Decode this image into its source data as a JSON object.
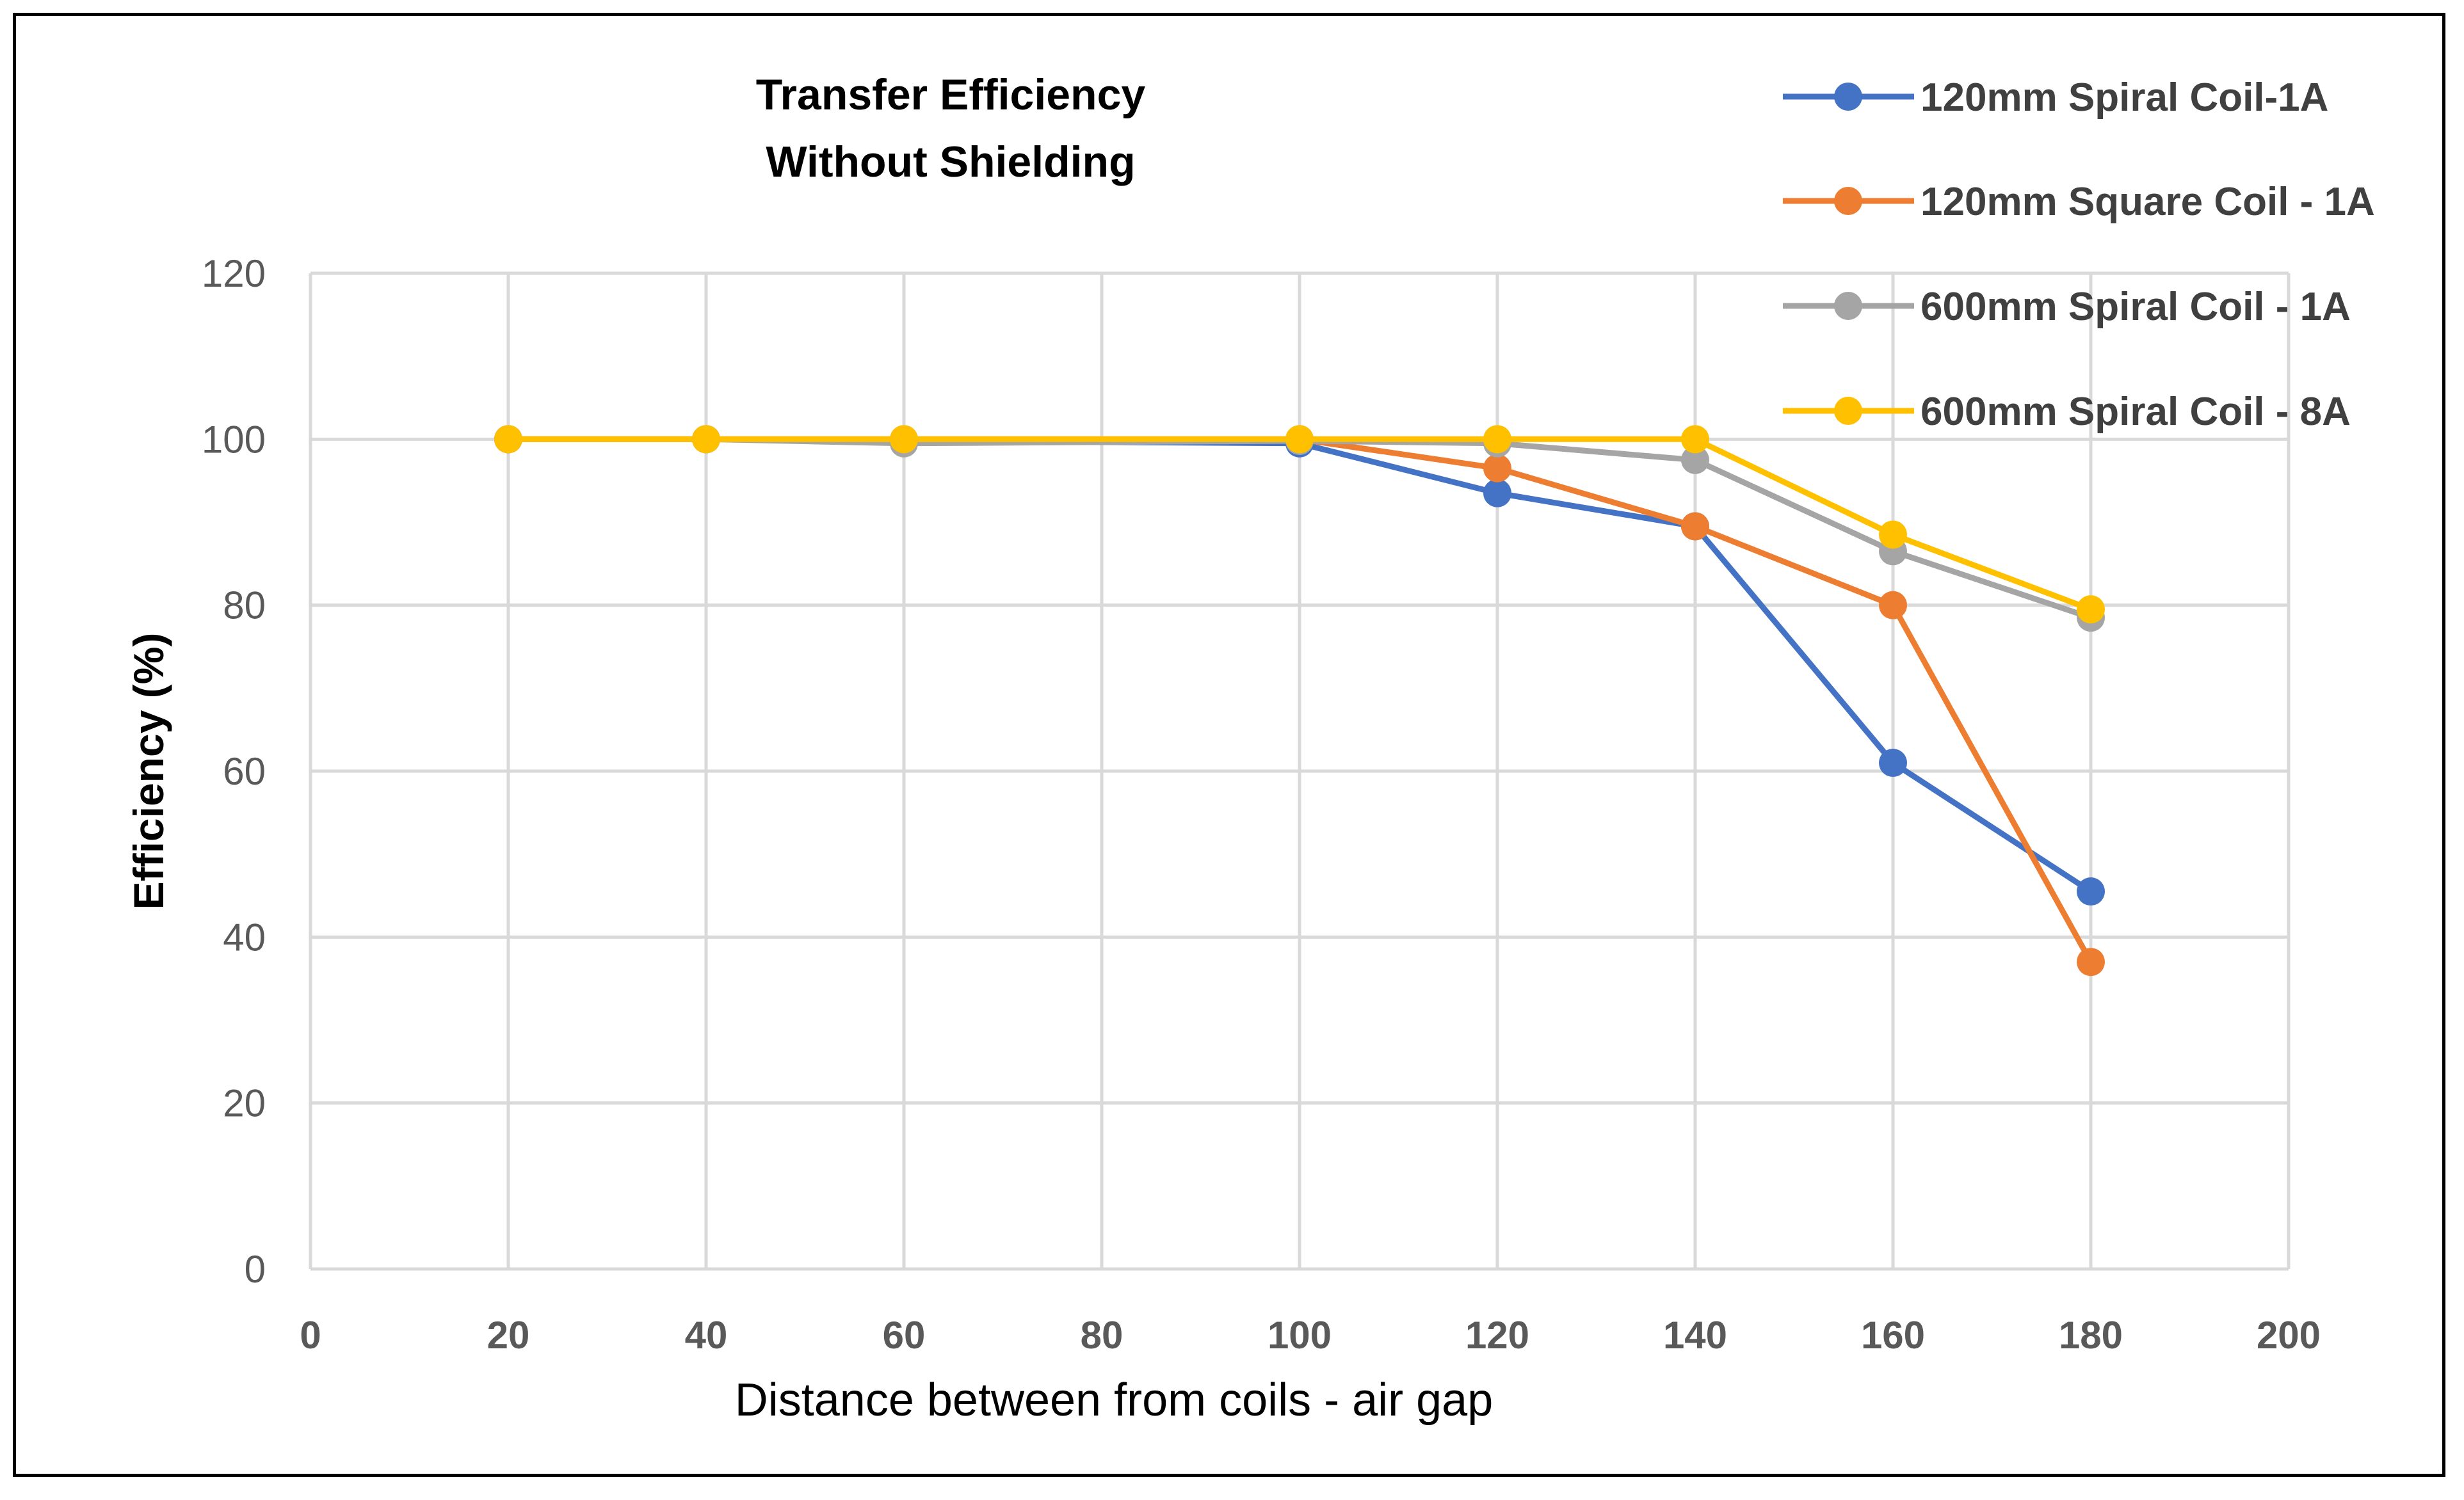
{
  "chart_data": {
    "type": "line",
    "title_lines": [
      "Transfer Efficiency",
      "Without Shielding"
    ],
    "xlabel": "Distance between from coils - air gap",
    "ylabel": "Efficiency (%)",
    "xlim": [
      0,
      200
    ],
    "ylim": [
      0,
      120
    ],
    "xticks": [
      0,
      20,
      40,
      60,
      80,
      100,
      120,
      140,
      160,
      180,
      200
    ],
    "yticks": [
      0,
      20,
      40,
      60,
      80,
      100,
      120
    ],
    "grid": true,
    "legend_position": "top-right",
    "x": [
      20,
      40,
      60,
      100,
      120,
      140,
      160,
      180
    ],
    "series": [
      {
        "name": "120mm Spiral Coil-1A",
        "color": "#4472C4",
        "values": [
          100,
          100,
          99.8,
          99.5,
          93.5,
          89.5,
          61,
          45.5
        ]
      },
      {
        "name": "120mm Square Coil - 1A",
        "color": "#ED7D31",
        "values": [
          100,
          100,
          100,
          100,
          96.5,
          89.5,
          80,
          37
        ]
      },
      {
        "name": "600mm Spiral Coil - 1A",
        "color": "#A5A5A5",
        "values": [
          100,
          100,
          99.5,
          99.8,
          99.5,
          97.5,
          86.5,
          78.5
        ]
      },
      {
        "name": "600mm Spiral Coil - 8A",
        "color": "#FFC000",
        "values": [
          100,
          100,
          100,
          100,
          100,
          100,
          88.5,
          79.5
        ]
      }
    ]
  }
}
